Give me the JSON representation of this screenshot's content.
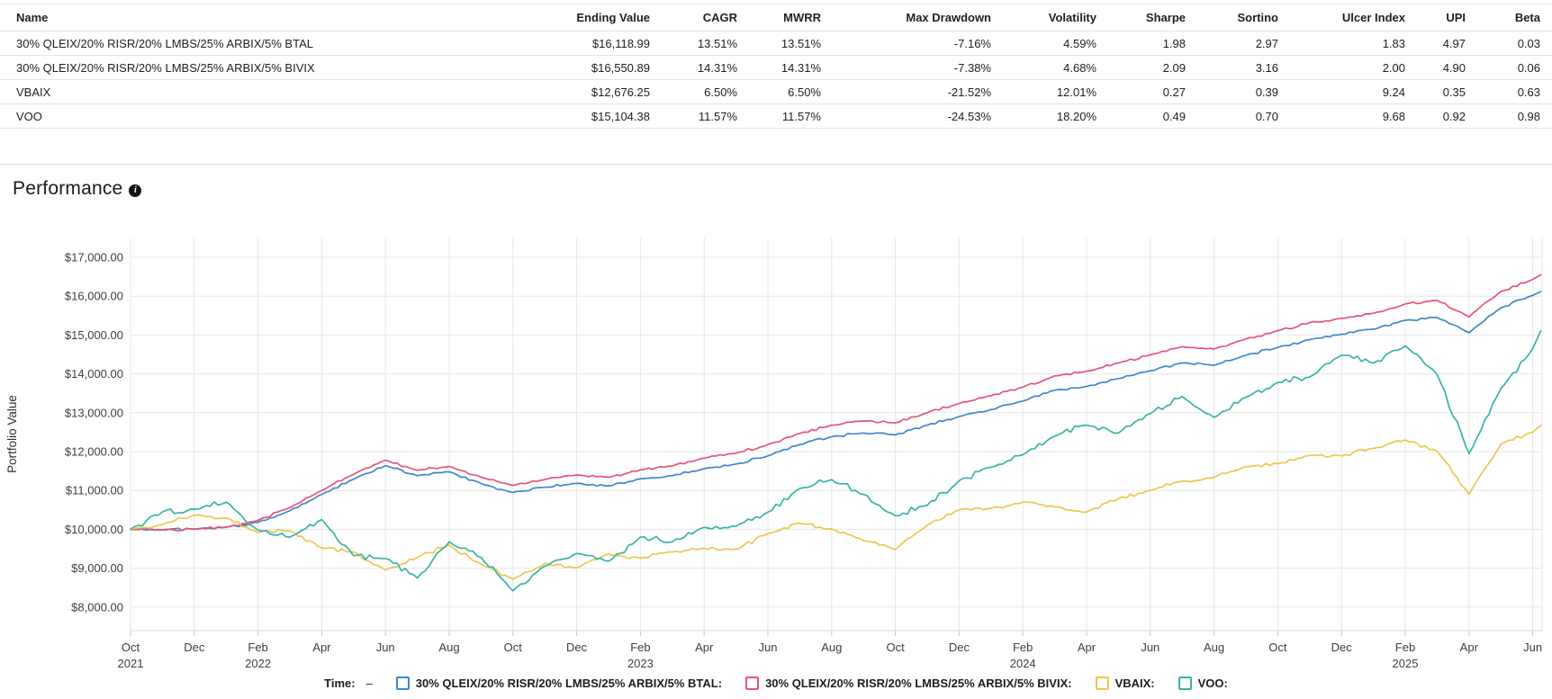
{
  "table": {
    "columns": [
      "Name",
      "Ending Value",
      "CAGR",
      "MWRR",
      "Max Drawdown",
      "Volatility",
      "Sharpe",
      "Sortino",
      "Ulcer Index",
      "UPI",
      "Beta"
    ],
    "rows": [
      [
        "30% QLEIX/20% RISR/20% LMBS/25% ARBIX/5% BTAL",
        "$16,118.99",
        "13.51%",
        "13.51%",
        "-7.16%",
        "4.59%",
        "1.98",
        "2.97",
        "1.83",
        "4.97",
        "0.03"
      ],
      [
        "30% QLEIX/20% RISR/20% LMBS/25% ARBIX/5% BIVIX",
        "$16,550.89",
        "14.31%",
        "14.31%",
        "-7.38%",
        "4.68%",
        "2.09",
        "3.16",
        "2.00",
        "4.90",
        "0.06"
      ],
      [
        "VBAIX",
        "$12,676.25",
        "6.50%",
        "6.50%",
        "-21.52%",
        "12.01%",
        "0.27",
        "0.39",
        "9.24",
        "0.35",
        "0.63"
      ],
      [
        "VOO",
        "$15,104.38",
        "11.57%",
        "11.57%",
        "-24.53%",
        "18.20%",
        "0.49",
        "0.70",
        "9.68",
        "0.92",
        "0.98"
      ]
    ]
  },
  "performance": {
    "title": "Performance",
    "info_icon": "i"
  },
  "chart_data": {
    "type": "line",
    "title": "Performance",
    "xlabel": "",
    "ylabel": "Portfolio Value",
    "ylim": [
      8000,
      17000
    ],
    "grid": true,
    "y_ticks": [
      "$8,000.00",
      "$9,000.00",
      "$10,000.00",
      "$11,000.00",
      "$12,000.00",
      "$13,000.00",
      "$14,000.00",
      "$15,000.00",
      "$16,000.00",
      "$17,000.00"
    ],
    "y_tick_values": [
      8000,
      9000,
      10000,
      11000,
      12000,
      13000,
      14000,
      15000,
      16000,
      17000
    ],
    "x_tick_labels": [
      {
        "month": "Oct",
        "year": "2021"
      },
      {
        "month": "Dec"
      },
      {
        "month": "Feb",
        "year": "2022"
      },
      {
        "month": "Apr"
      },
      {
        "month": "Jun"
      },
      {
        "month": "Aug"
      },
      {
        "month": "Oct"
      },
      {
        "month": "Dec"
      },
      {
        "month": "Feb",
        "year": "2023"
      },
      {
        "month": "Apr"
      },
      {
        "month": "Jun"
      },
      {
        "month": "Aug"
      },
      {
        "month": "Oct"
      },
      {
        "month": "Dec"
      },
      {
        "month": "Feb",
        "year": "2024"
      },
      {
        "month": "Apr"
      },
      {
        "month": "Jun"
      },
      {
        "month": "Aug"
      },
      {
        "month": "Oct"
      },
      {
        "month": "Dec"
      },
      {
        "month": "Feb",
        "year": "2025"
      },
      {
        "month": "Apr"
      },
      {
        "month": "Jun"
      }
    ],
    "months": [
      "2021-10",
      "2021-11",
      "2021-12",
      "2022-01",
      "2022-02",
      "2022-03",
      "2022-04",
      "2022-05",
      "2022-06",
      "2022-07",
      "2022-08",
      "2022-09",
      "2022-10",
      "2022-11",
      "2022-12",
      "2023-01",
      "2023-02",
      "2023-03",
      "2023-04",
      "2023-05",
      "2023-06",
      "2023-07",
      "2023-08",
      "2023-09",
      "2023-10",
      "2023-11",
      "2023-12",
      "2024-01",
      "2024-02",
      "2024-03",
      "2024-04",
      "2024-05",
      "2024-06",
      "2024-07",
      "2024-08",
      "2024-09",
      "2024-10",
      "2024-11",
      "2024-12",
      "2025-01",
      "2025-02",
      "2025-03",
      "2025-04",
      "2025-05",
      "2025-06"
    ],
    "series": [
      {
        "name": "30% QLEIX/20% RISR/20% LMBS/25% ARBIX/5% BTAL",
        "color": "#3f87ce",
        "end_value": 16118.99,
        "values": [
          10000,
          9990,
          10010,
          10050,
          10180,
          10480,
          10900,
          11290,
          11640,
          11380,
          11480,
          11180,
          10950,
          11080,
          11180,
          11120,
          11300,
          11380,
          11560,
          11680,
          11890,
          12180,
          12380,
          12480,
          12430,
          12680,
          12900,
          13080,
          13300,
          13580,
          13680,
          13880,
          14080,
          14280,
          14220,
          14480,
          14680,
          14880,
          15020,
          15150,
          15380,
          15450,
          15060,
          15700,
          16020
        ]
      },
      {
        "name": "30% QLEIX/20% RISR/20% LMBS/25% ARBIX/5% BIVIX",
        "color": "#e75573",
        "end_value": 16550.89,
        "values": [
          10000,
          9985,
          10005,
          10060,
          10230,
          10560,
          11000,
          11420,
          11780,
          11520,
          11620,
          11340,
          11130,
          11280,
          11400,
          11340,
          11530,
          11630,
          11830,
          11960,
          12180,
          12470,
          12680,
          12790,
          12740,
          13000,
          13240,
          13440,
          13660,
          13950,
          14070,
          14280,
          14490,
          14700,
          14640,
          14900,
          15110,
          15320,
          15430,
          15560,
          15800,
          15890,
          15470,
          16120,
          16430
        ]
      },
      {
        "name": "VBAIX",
        "color": "#efc64f",
        "end_value": 12676.25,
        "values": [
          10000,
          10120,
          10360,
          10290,
          9920,
          9960,
          9520,
          9420,
          8950,
          9280,
          9600,
          9100,
          8720,
          9120,
          9010,
          9360,
          9260,
          9420,
          9510,
          9490,
          9890,
          10160,
          10010,
          9710,
          9480,
          10110,
          10500,
          10540,
          10700,
          10580,
          10440,
          10790,
          11000,
          11240,
          11340,
          11610,
          11690,
          11900,
          11890,
          12080,
          12300,
          12010,
          10900,
          12190,
          12500
        ]
      },
      {
        "name": "VOO",
        "color": "#38b4a6",
        "end_value": 15104.38,
        "values": [
          10000,
          10450,
          10520,
          10700,
          9980,
          9800,
          10250,
          9320,
          9250,
          8750,
          9680,
          9280,
          8420,
          9050,
          9380,
          9180,
          9800,
          9680,
          10050,
          10080,
          10440,
          11050,
          11280,
          10900,
          10350,
          10620,
          11250,
          11600,
          11920,
          12400,
          12680,
          12480,
          12980,
          13420,
          12880,
          13400,
          13780,
          13920,
          14480,
          14280,
          14720,
          13980,
          11950,
          13620,
          14650
        ]
      }
    ],
    "legend": {
      "time_label": "Time:",
      "time_value": "–",
      "position": "bottom"
    },
    "render_hints": {
      "jitter": [
        35,
        35,
        55,
        85
      ],
      "subpoints": 8,
      "end_month": 44.25
    }
  },
  "colors": {
    "grid": "#e7e7e7",
    "axis_boundary": "#dcdcdc",
    "tick": "#c9c9c9",
    "axis_text": "#3c4043",
    "text": "#202124"
  }
}
